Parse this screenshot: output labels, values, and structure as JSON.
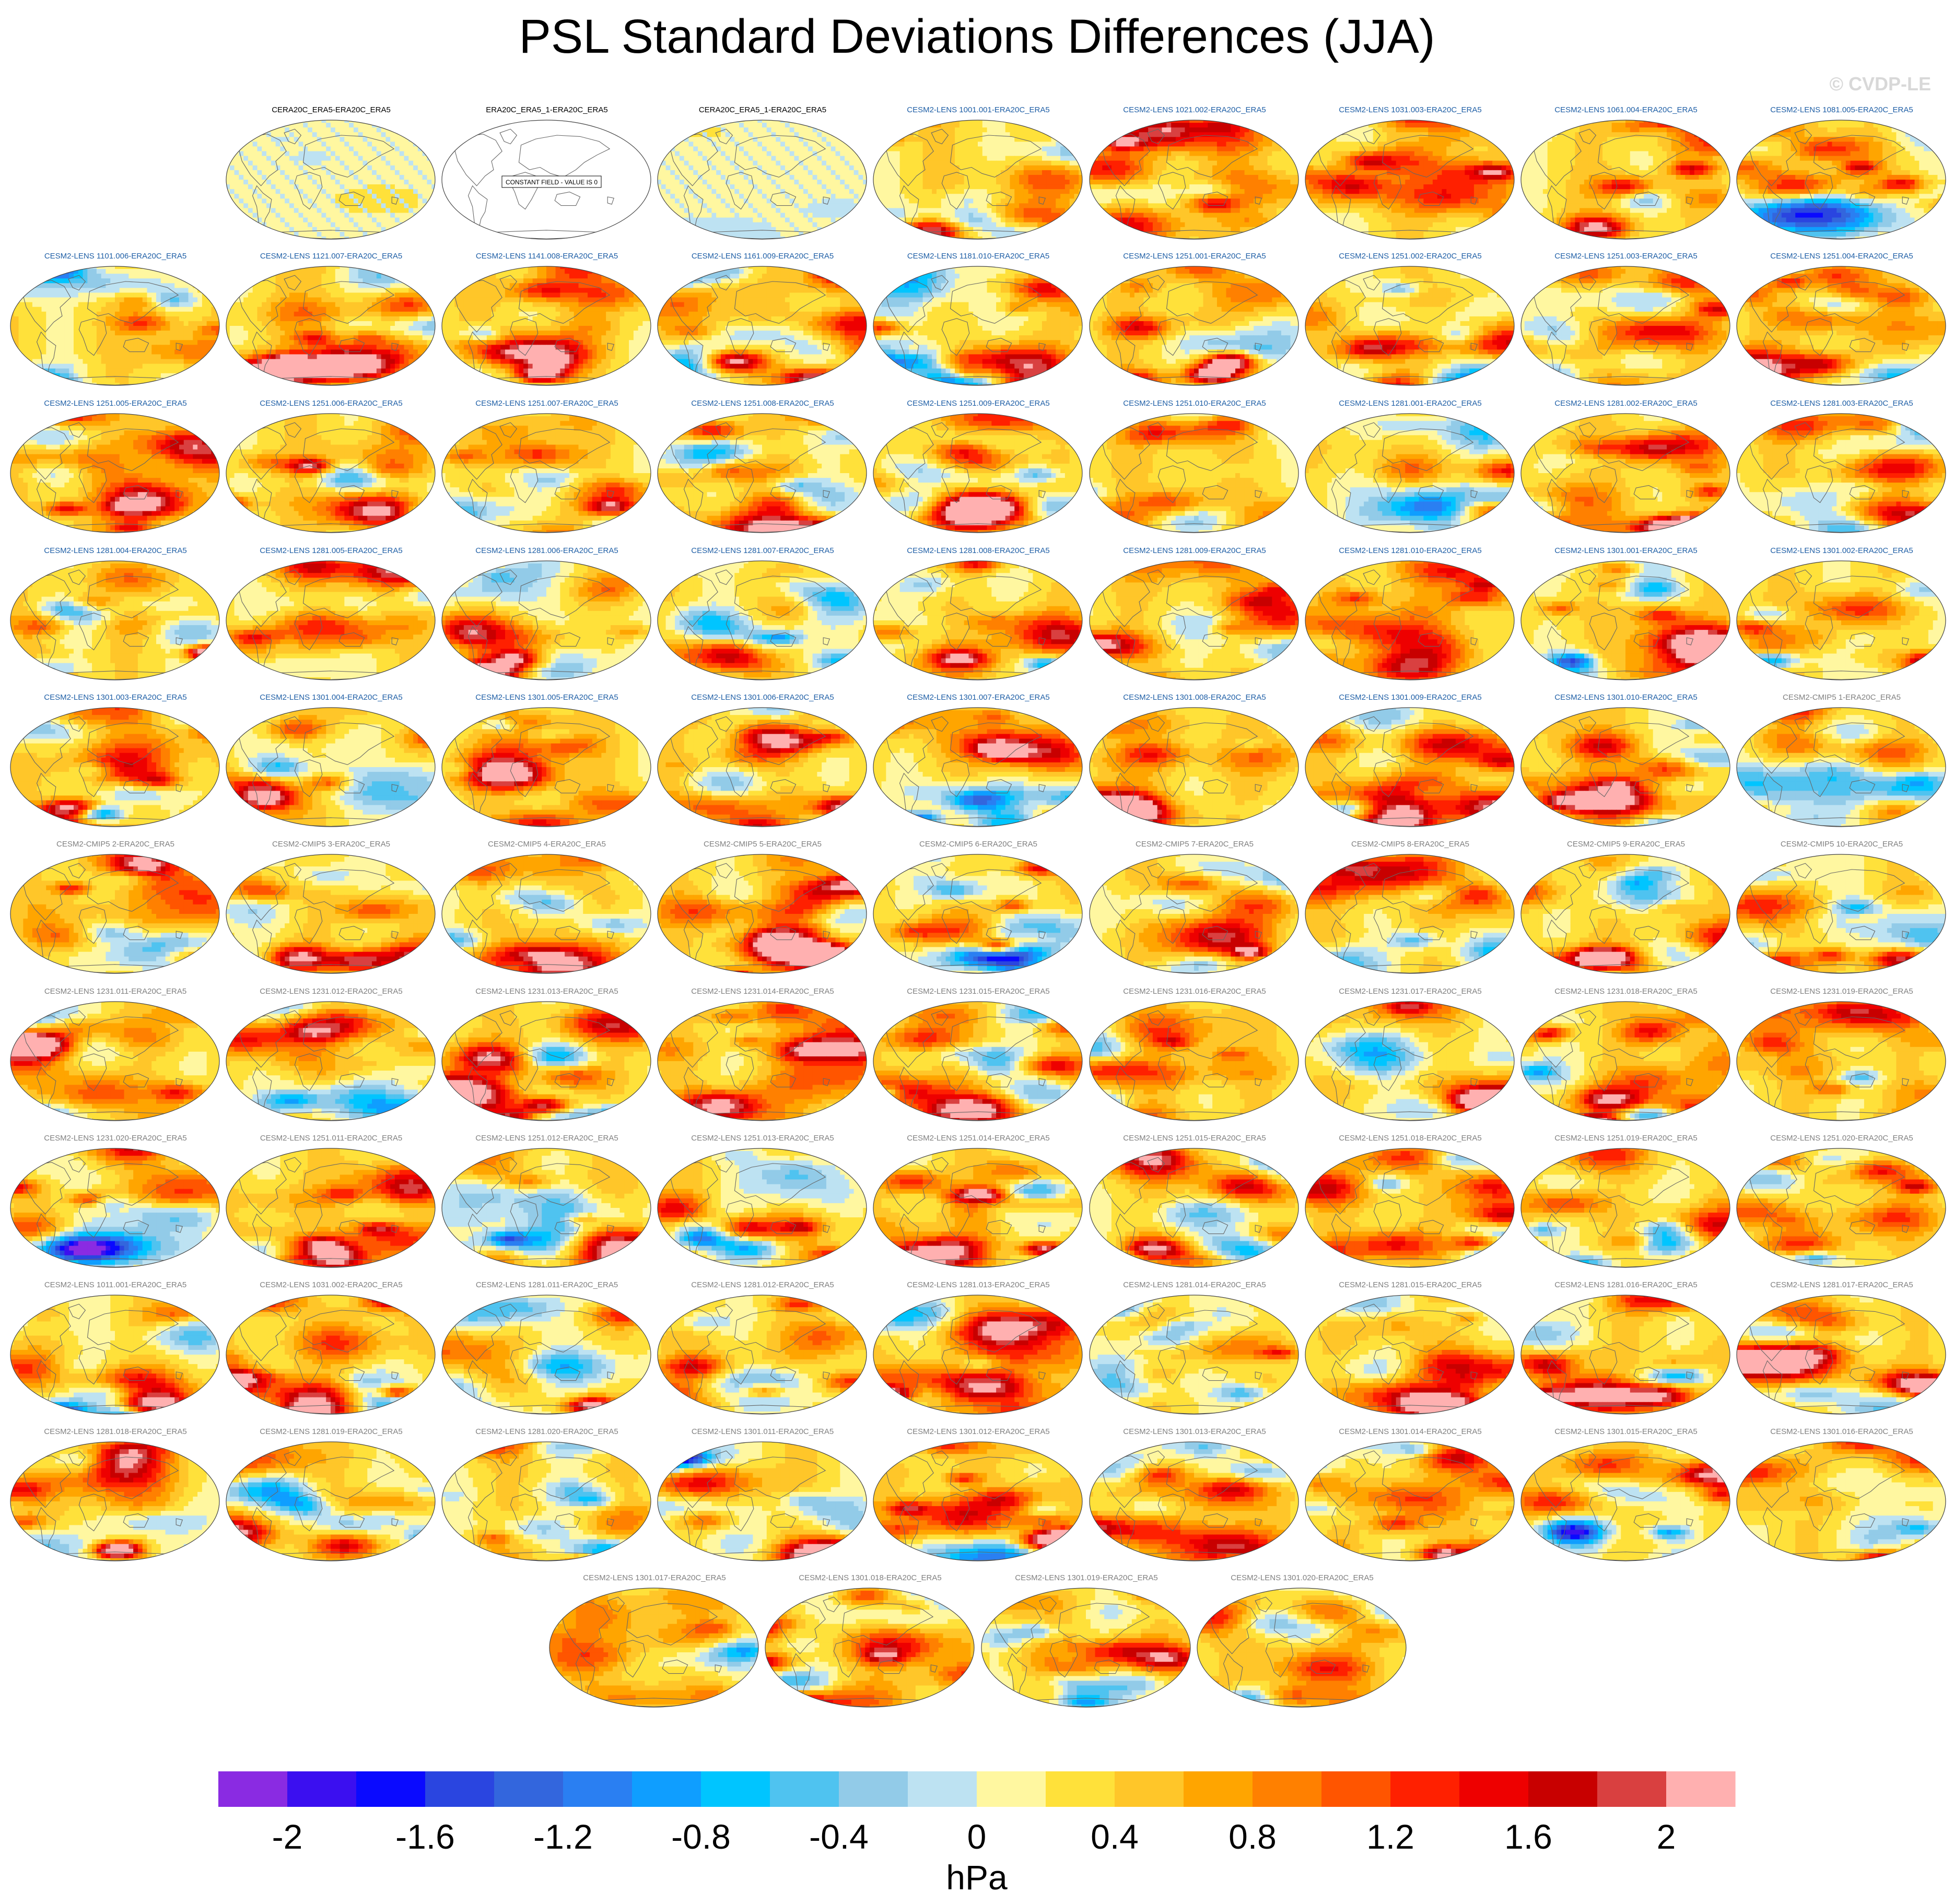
{
  "header": {
    "title": "PSL Standard Deviations Differences (JJA)",
    "watermark": "© CVDP-LE"
  },
  "chart_data": {
    "type": "heatmap",
    "title": "PSL Standard Deviations Differences (JJA)",
    "season": "JJA",
    "projection": "Robinson global maps centered on the Pacific",
    "panel_layout": "9 columns; row 1 starts at column 2; final row of 4 panels centered",
    "colorbar": {
      "unit_label": "hPa",
      "ticks": [
        "-2",
        "-1.6",
        "-1.2",
        "-0.8",
        "-0.4",
        "0",
        "0.4",
        "0.8",
        "1.2",
        "1.6",
        "2"
      ],
      "tick_values": [
        -2,
        -1.6,
        -1.2,
        -0.8,
        -0.4,
        0,
        0.4,
        0.8,
        1.2,
        1.6,
        2
      ],
      "range": [
        -2.2,
        2.2
      ],
      "interval": 0.2,
      "colors": [
        "#8a2be2",
        "#3b0ff0",
        "#0a0aff",
        "#2a45e0",
        "#3366dd",
        "#2a7ff2",
        "#0f9eff",
        "#00c5ff",
        "#4fc3f0",
        "#92cbe8",
        "#bde2f2",
        "#fff7a0",
        "#ffe13a",
        "#ffc629",
        "#ffa500",
        "#ff8000",
        "#ff5500",
        "#ff2000",
        "#ee0000",
        "#c80000",
        "#d94040",
        "#ffb0b0"
      ]
    },
    "constant_field_note": "CONSTANT FIELD - VALUE IS 0",
    "panels": [
      {
        "label": "CERA20C_ERA5-ERA20C_ERA5",
        "label_color": "#000000",
        "pattern": "near_zero"
      },
      {
        "label": "ERA20C_ERA5_1-ERA20C_ERA5",
        "label_color": "#000000",
        "pattern": "constant"
      },
      {
        "label": "CERA20C_ERA5_1-ERA20C_ERA5",
        "label_color": "#000000",
        "pattern": "near_zero"
      },
      {
        "label": "CESM2-LENS 1001.001-ERA20C_ERA5",
        "label_color": "#1f5fa6"
      },
      {
        "label": "CESM2-LENS 1021.002-ERA20C_ERA5",
        "label_color": "#1f5fa6"
      },
      {
        "label": "CESM2-LENS 1031.003-ERA20C_ERA5",
        "label_color": "#1f5fa6"
      },
      {
        "label": "CESM2-LENS 1061.004-ERA20C_ERA5",
        "label_color": "#1f5fa6"
      },
      {
        "label": "CESM2-LENS 1081.005-ERA20C_ERA5",
        "label_color": "#1f5fa6"
      },
      {
        "label": "CESM2-LENS 1101.006-ERA20C_ERA5",
        "label_color": "#1f5fa6"
      },
      {
        "label": "CESM2-LENS 1121.007-ERA20C_ERA5",
        "label_color": "#1f5fa6"
      },
      {
        "label": "CESM2-LENS 1141.008-ERA20C_ERA5",
        "label_color": "#1f5fa6"
      },
      {
        "label": "CESM2-LENS 1161.009-ERA20C_ERA5",
        "label_color": "#1f5fa6"
      },
      {
        "label": "CESM2-LENS 1181.010-ERA20C_ERA5",
        "label_color": "#1f5fa6"
      },
      {
        "label": "CESM2-LENS 1251.001-ERA20C_ERA5",
        "label_color": "#1f5fa6"
      },
      {
        "label": "CESM2-LENS 1251.002-ERA20C_ERA5",
        "label_color": "#1f5fa6"
      },
      {
        "label": "CESM2-LENS 1251.003-ERA20C_ERA5",
        "label_color": "#1f5fa6"
      },
      {
        "label": "CESM2-LENS 1251.004-ERA20C_ERA5",
        "label_color": "#1f5fa6"
      },
      {
        "label": "CESM2-LENS 1251.005-ERA20C_ERA5",
        "label_color": "#1f5fa6"
      },
      {
        "label": "CESM2-LENS 1251.006-ERA20C_ERA5",
        "label_color": "#1f5fa6"
      },
      {
        "label": "CESM2-LENS 1251.007-ERA20C_ERA5",
        "label_color": "#1f5fa6"
      },
      {
        "label": "CESM2-LENS 1251.008-ERA20C_ERA5",
        "label_color": "#1f5fa6"
      },
      {
        "label": "CESM2-LENS 1251.009-ERA20C_ERA5",
        "label_color": "#1f5fa6"
      },
      {
        "label": "CESM2-LENS 1251.010-ERA20C_ERA5",
        "label_color": "#1f5fa6"
      },
      {
        "label": "CESM2-LENS 1281.001-ERA20C_ERA5",
        "label_color": "#1f5fa6"
      },
      {
        "label": "CESM2-LENS 1281.002-ERA20C_ERA5",
        "label_color": "#1f5fa6"
      },
      {
        "label": "CESM2-LENS 1281.003-ERA20C_ERA5",
        "label_color": "#1f5fa6"
      },
      {
        "label": "CESM2-LENS 1281.004-ERA20C_ERA5",
        "label_color": "#1f5fa6"
      },
      {
        "label": "CESM2-LENS 1281.005-ERA20C_ERA5",
        "label_color": "#1f5fa6"
      },
      {
        "label": "CESM2-LENS 1281.006-ERA20C_ERA5",
        "label_color": "#1f5fa6"
      },
      {
        "label": "CESM2-LENS 1281.007-ERA20C_ERA5",
        "label_color": "#1f5fa6"
      },
      {
        "label": "CESM2-LENS 1281.008-ERA20C_ERA5",
        "label_color": "#1f5fa6"
      },
      {
        "label": "CESM2-LENS 1281.009-ERA20C_ERA5",
        "label_color": "#1f5fa6"
      },
      {
        "label": "CESM2-LENS 1281.010-ERA20C_ERA5",
        "label_color": "#1f5fa6"
      },
      {
        "label": "CESM2-LENS 1301.001-ERA20C_ERA5",
        "label_color": "#1f5fa6"
      },
      {
        "label": "CESM2-LENS 1301.002-ERA20C_ERA5",
        "label_color": "#1f5fa6"
      },
      {
        "label": "CESM2-LENS 1301.003-ERA20C_ERA5",
        "label_color": "#1f5fa6"
      },
      {
        "label": "CESM2-LENS 1301.004-ERA20C_ERA5",
        "label_color": "#1f5fa6"
      },
      {
        "label": "CESM2-LENS 1301.005-ERA20C_ERA5",
        "label_color": "#1f5fa6"
      },
      {
        "label": "CESM2-LENS 1301.006-ERA20C_ERA5",
        "label_color": "#1f5fa6"
      },
      {
        "label": "CESM2-LENS 1301.007-ERA20C_ERA5",
        "label_color": "#1f5fa6"
      },
      {
        "label": "CESM2-LENS 1301.008-ERA20C_ERA5",
        "label_color": "#1f5fa6"
      },
      {
        "label": "CESM2-LENS 1301.009-ERA20C_ERA5",
        "label_color": "#1f5fa6"
      },
      {
        "label": "CESM2-LENS 1301.010-ERA20C_ERA5",
        "label_color": "#1f5fa6"
      },
      {
        "label": "CESM2-CMIP5 1-ERA20C_ERA5",
        "label_color": "#808080"
      },
      {
        "label": "CESM2-CMIP5 2-ERA20C_ERA5",
        "label_color": "#808080"
      },
      {
        "label": "CESM2-CMIP5 3-ERA20C_ERA5",
        "label_color": "#808080"
      },
      {
        "label": "CESM2-CMIP5 4-ERA20C_ERA5",
        "label_color": "#808080"
      },
      {
        "label": "CESM2-CMIP5 5-ERA20C_ERA5",
        "label_color": "#808080"
      },
      {
        "label": "CESM2-CMIP5 6-ERA20C_ERA5",
        "label_color": "#808080"
      },
      {
        "label": "CESM2-CMIP5 7-ERA20C_ERA5",
        "label_color": "#808080"
      },
      {
        "label": "CESM2-CMIP5 8-ERA20C_ERA5",
        "label_color": "#808080"
      },
      {
        "label": "CESM2-CMIP5 9-ERA20C_ERA5",
        "label_color": "#808080"
      },
      {
        "label": "CESM2-CMIP5 10-ERA20C_ERA5",
        "label_color": "#808080"
      },
      {
        "label": "CESM2-LENS 1231.011-ERA20C_ERA5",
        "label_color": "#808080"
      },
      {
        "label": "CESM2-LENS 1231.012-ERA20C_ERA5",
        "label_color": "#808080"
      },
      {
        "label": "CESM2-LENS 1231.013-ERA20C_ERA5",
        "label_color": "#808080"
      },
      {
        "label": "CESM2-LENS 1231.014-ERA20C_ERA5",
        "label_color": "#808080"
      },
      {
        "label": "CESM2-LENS 1231.015-ERA20C_ERA5",
        "label_color": "#808080"
      },
      {
        "label": "CESM2-LENS 1231.016-ERA20C_ERA5",
        "label_color": "#808080"
      },
      {
        "label": "CESM2-LENS 1231.017-ERA20C_ERA5",
        "label_color": "#808080"
      },
      {
        "label": "CESM2-LENS 1231.018-ERA20C_ERA5",
        "label_color": "#808080"
      },
      {
        "label": "CESM2-LENS 1231.019-ERA20C_ERA5",
        "label_color": "#808080"
      },
      {
        "label": "CESM2-LENS 1231.020-ERA20C_ERA5",
        "label_color": "#808080"
      },
      {
        "label": "CESM2-LENS 1251.011-ERA20C_ERA5",
        "label_color": "#808080"
      },
      {
        "label": "CESM2-LENS 1251.012-ERA20C_ERA5",
        "label_color": "#808080"
      },
      {
        "label": "CESM2-LENS 1251.013-ERA20C_ERA5",
        "label_color": "#808080"
      },
      {
        "label": "CESM2-LENS 1251.014-ERA20C_ERA5",
        "label_color": "#808080"
      },
      {
        "label": "CESM2-LENS 1251.015-ERA20C_ERA5",
        "label_color": "#808080"
      },
      {
        "label": "CESM2-LENS 1251.018-ERA20C_ERA5",
        "label_color": "#808080"
      },
      {
        "label": "CESM2-LENS 1251.019-ERA20C_ERA5",
        "label_color": "#808080"
      },
      {
        "label": "CESM2-LENS 1251.020-ERA20C_ERA5",
        "label_color": "#808080"
      },
      {
        "label": "CESM2-LENS 1011.001-ERA20C_ERA5",
        "label_color": "#808080"
      },
      {
        "label": "CESM2-LENS 1031.002-ERA20C_ERA5",
        "label_color": "#808080"
      },
      {
        "label": "CESM2-LENS 1281.011-ERA20C_ERA5",
        "label_color": "#808080"
      },
      {
        "label": "CESM2-LENS 1281.012-ERA20C_ERA5",
        "label_color": "#808080"
      },
      {
        "label": "CESM2-LENS 1281.013-ERA20C_ERA5",
        "label_color": "#808080"
      },
      {
        "label": "CESM2-LENS 1281.014-ERA20C_ERA5",
        "label_color": "#808080"
      },
      {
        "label": "CESM2-LENS 1281.015-ERA20C_ERA5",
        "label_color": "#808080"
      },
      {
        "label": "CESM2-LENS 1281.016-ERA20C_ERA5",
        "label_color": "#808080"
      },
      {
        "label": "CESM2-LENS 1281.017-ERA20C_ERA5",
        "label_color": "#808080"
      },
      {
        "label": "CESM2-LENS 1281.018-ERA20C_ERA5",
        "label_color": "#808080"
      },
      {
        "label": "CESM2-LENS 1281.019-ERA20C_ERA5",
        "label_color": "#808080"
      },
      {
        "label": "CESM2-LENS 1281.020-ERA20C_ERA5",
        "label_color": "#808080"
      },
      {
        "label": "CESM2-LENS 1301.011-ERA20C_ERA5",
        "label_color": "#808080"
      },
      {
        "label": "CESM2-LENS 1301.012-ERA20C_ERA5",
        "label_color": "#808080"
      },
      {
        "label": "CESM2-LENS 1301.013-ERA20C_ERA5",
        "label_color": "#808080"
      },
      {
        "label": "CESM2-LENS 1301.014-ERA20C_ERA5",
        "label_color": "#808080"
      },
      {
        "label": "CESM2-LENS 1301.015-ERA20C_ERA5",
        "label_color": "#808080"
      },
      {
        "label": "CESM2-LENS 1301.016-ERA20C_ERA5",
        "label_color": "#808080"
      },
      {
        "label": "CESM2-LENS 1301.017-ERA20C_ERA5",
        "label_color": "#808080"
      },
      {
        "label": "CESM2-LENS 1301.018-ERA20C_ERA5",
        "label_color": "#808080"
      },
      {
        "label": "CESM2-LENS 1301.019-ERA20C_ERA5",
        "label_color": "#808080"
      },
      {
        "label": "CESM2-LENS 1301.020-ERA20C_ERA5",
        "label_color": "#808080"
      }
    ]
  }
}
